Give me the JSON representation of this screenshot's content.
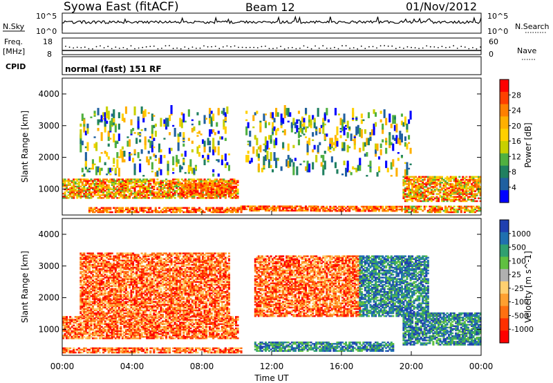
{
  "header": {
    "station": "Syowa East (fitACF)",
    "beam": "Beam 12",
    "date": "01/Nov/2012"
  },
  "strip_nsky": {
    "left_label": "N.Sky",
    "ticks_left": [
      "10^5",
      "10^0"
    ],
    "right_label": "N.Search",
    "ticks_right": [
      "10^5",
      "10^0"
    ]
  },
  "strip_freq": {
    "left_label_1": "Freq.",
    "left_label_2": "[MHz]",
    "ticks_left": [
      "18",
      "8"
    ],
    "right_label": "Nave",
    "ticks_right": [
      "60",
      "0"
    ]
  },
  "strip_cpid": {
    "left_label": "CPID",
    "mode_text": "normal (fast) 151 RF"
  },
  "x_axis": {
    "label": "Time UT",
    "ticks": [
      "00:00",
      "04:00",
      "08:00",
      "12:00",
      "16:00",
      "20:00",
      "00:00"
    ]
  },
  "chart_data": [
    {
      "type": "heatmap",
      "name": "power-panel",
      "xlabel": "Time UT",
      "ylabel": "Slant Range [km]",
      "xlim": [
        0,
        24
      ],
      "ylim": [
        180,
        4500
      ],
      "yticks": [
        "1000",
        "2000",
        "3000",
        "4000"
      ],
      "colorbar": {
        "label": "Power [dB]",
        "ticks": [
          "28",
          "24",
          "20",
          "16",
          "12",
          "8",
          "4"
        ],
        "colors": [
          "#ff0000",
          "#ff4000",
          "#ff8000",
          "#ffb000",
          "#ffd000",
          "#c8d000",
          "#50b040",
          "#208060",
          "#2060a0",
          "#0000ff"
        ]
      },
      "bands": [
        {
          "t": [
            1.5,
            10.2
          ],
          "r": [
            250,
            420
          ],
          "level": "high"
        },
        {
          "t": [
            10.2,
            14.5
          ],
          "r": [
            300,
            480
          ],
          "level": "high"
        },
        {
          "t": [
            14.5,
            19.5
          ],
          "r": [
            290,
            460
          ],
          "level": "high"
        },
        {
          "t": [
            19.5,
            24
          ],
          "r": [
            250,
            450
          ],
          "level": "med"
        },
        {
          "t": [
            0,
            10
          ],
          "r": [
            700,
            1300
          ],
          "level": "med"
        },
        {
          "t": [
            6.8,
            9.6
          ],
          "r": [
            800,
            1200
          ],
          "level": "high"
        },
        {
          "t": [
            19.5,
            24
          ],
          "r": [
            600,
            1400
          ],
          "level": "med"
        },
        {
          "t": [
            1,
            9.5
          ],
          "r": [
            1400,
            3400
          ],
          "level": "low"
        },
        {
          "t": [
            10.5,
            20
          ],
          "r": [
            1400,
            3400
          ],
          "level": "low"
        }
      ]
    },
    {
      "type": "heatmap",
      "name": "velocity-panel",
      "xlabel": "Time UT",
      "ylabel": "Slant Range [km]",
      "xlim": [
        0,
        24
      ],
      "ylim": [
        180,
        4500
      ],
      "yticks": [
        "1000",
        "2000",
        "3000",
        "4000"
      ],
      "colorbar": {
        "label": "Velocity [m s^-1]",
        "ticks": [
          "1000",
          "500",
          "100",
          "25",
          "-25",
          "-100",
          "-500",
          "-1000"
        ],
        "colors": [
          "#2040b0",
          "#2070b0",
          "#30a070",
          "#60c040",
          "#b0b0b0",
          "#ffd070",
          "#ffa030",
          "#ff7010",
          "#ff3000",
          "#ff0000"
        ]
      },
      "bands": [
        {
          "t": [
            0,
            10.2
          ],
          "r": [
            250,
            400
          ],
          "level": "neg"
        },
        {
          "t": [
            0,
            10
          ],
          "r": [
            700,
            1400
          ],
          "level": "neg"
        },
        {
          "t": [
            11,
            19
          ],
          "r": [
            300,
            600
          ],
          "level": "pos"
        },
        {
          "t": [
            19.5,
            24
          ],
          "r": [
            500,
            1500
          ],
          "level": "pos"
        },
        {
          "t": [
            1,
            9.5
          ],
          "r": [
            1400,
            3400
          ],
          "level": "neg"
        },
        {
          "t": [
            11,
            17
          ],
          "r": [
            1400,
            3300
          ],
          "level": "neg"
        },
        {
          "t": [
            17,
            21
          ],
          "r": [
            1400,
            3300
          ],
          "level": "pos"
        }
      ]
    }
  ]
}
